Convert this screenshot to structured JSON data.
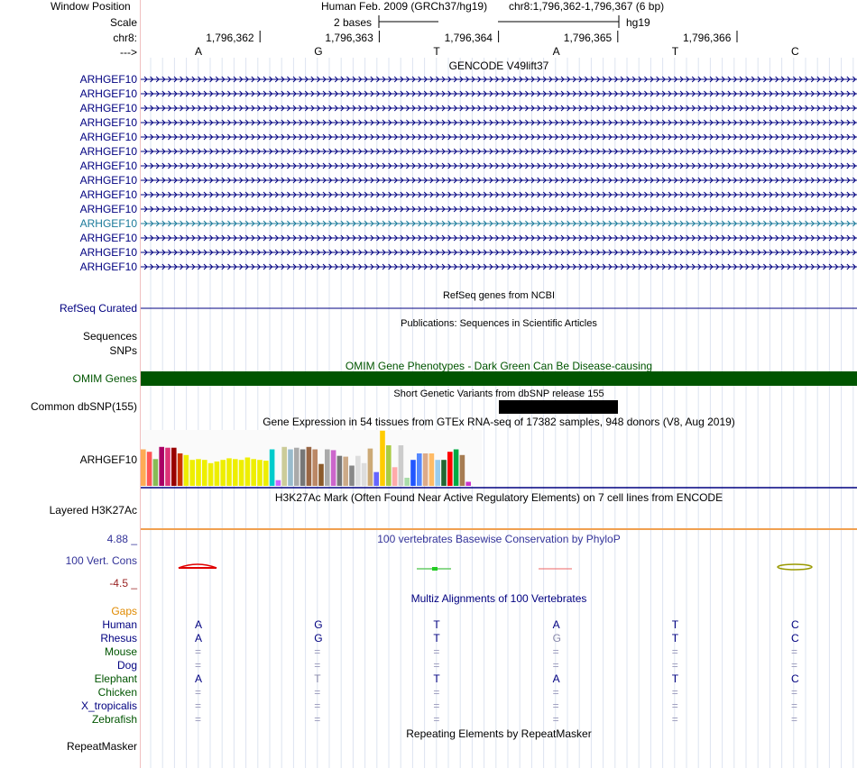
{
  "header": {
    "window_position_label": "Window Position",
    "assembly": "Human Feb. 2009 (GRCh37/hg19)",
    "position": "chr8:1,796,362-1,796,367 (6 bp)",
    "scale_label": "Scale",
    "scale_text": "2 bases",
    "scale_db": "hg19",
    "chrom_label": "chr8:",
    "strand_label": "--->",
    "coords": [
      "1,796,362",
      "1,796,363",
      "1,796,364",
      "1,796,365",
      "1,796,366"
    ],
    "bases": [
      "A",
      "G",
      "T",
      "A",
      "T",
      "C"
    ]
  },
  "gencode": {
    "title": "GENCODE V49lift37",
    "gene_labels": [
      "ARHGEF10",
      "ARHGEF10",
      "ARHGEF10",
      "ARHGEF10",
      "ARHGEF10",
      "ARHGEF10",
      "ARHGEF10",
      "ARHGEF10",
      "ARHGEF10",
      "ARHGEF10",
      "ARHGEF10",
      "ARHGEF10",
      "ARHGEF10",
      "ARHGEF10"
    ],
    "highlight_index": 10,
    "color": "#000080",
    "highlight_color": "#1a7a9a"
  },
  "refseq": {
    "title": "RefSeq genes from NCBI",
    "label": "RefSeq Curated"
  },
  "publications": {
    "title": "Publications: Sequences in Scientific Articles",
    "label_sequences": "Sequences",
    "label_snps": "SNPs"
  },
  "omim": {
    "title": "OMIM Gene Phenotypes - Dark Green Can Be Disease-causing",
    "label": "OMIM Genes",
    "color": "#005500"
  },
  "dbsnp": {
    "title": "Short Genetic Variants from dbSNP release 155",
    "label": "Common dbSNP(155)"
  },
  "gtex": {
    "title": "Gene Expression in 54 tissues from GTEx RNA-seq of 17382 samples, 948 donors (V8, Aug 2019)",
    "label": "ARHGEF10",
    "values": [
      0.45,
      0.42,
      0.33,
      0.48,
      0.47,
      0.47,
      0.4,
      0.38,
      0.32,
      0.33,
      0.32,
      0.28,
      0.3,
      0.32,
      0.34,
      0.33,
      0.32,
      0.35,
      0.33,
      0.32,
      0.31,
      0.45,
      0.07,
      0.48,
      0.45,
      0.47,
      0.45,
      0.48,
      0.45,
      0.27,
      0.45,
      0.44,
      0.37,
      0.36,
      0.25,
      0.37,
      0.28,
      0.46,
      0.17,
      0.68,
      0.5,
      0.23,
      0.5,
      0.1,
      0.32,
      0.4,
      0.4,
      0.4,
      0.32,
      0.32,
      0.42,
      0.45,
      0.38,
      0.05
    ],
    "colors": [
      "#ffaa55",
      "#ff5555",
      "#88bb55",
      "#aa0066",
      "#dd3377",
      "#990000",
      "#cc3300",
      "#eeee00",
      "#eeee00",
      "#eeee00",
      "#eeee00",
      "#eeee00",
      "#eeee00",
      "#eeee00",
      "#eeee00",
      "#eeee00",
      "#eeee00",
      "#eeee00",
      "#eeee00",
      "#eeee00",
      "#eeee00",
      "#00cccc",
      "#cc66ff",
      "#cccc99",
      "#99bbcc",
      "#aaaaaa",
      "#777777",
      "#996644",
      "#bb8866",
      "#8B5A2B",
      "#aaaaaa",
      "#cc66cc",
      "#777777",
      "#ccaa88",
      "#888888",
      "#dddddd",
      "#dddddd",
      "#ccaa77",
      "#6666ff",
      "#ffcc00",
      "#aacc44",
      "#ffaaaa",
      "#cccccc",
      "#aaddaa",
      "#2255ff",
      "#5588ff",
      "#ddaa88",
      "#ffbb66",
      "#99ccee",
      "#226633",
      "#ff0000",
      "#00aa44",
      "#a67c52",
      "#cc33cc"
    ]
  },
  "h3k27ac": {
    "title": "H3K27Ac Mark (Often Found Near Active Regulatory Elements) on 7 cell lines from ENCODE",
    "label": "Layered H3K27Ac"
  },
  "phylop": {
    "title": "100 vertebrates Basewise Conservation by PhyloP",
    "label": "100 Vert. Cons",
    "max_label": "4.88 _",
    "min_label": "-4.5 _",
    "values": [
      1.2,
      0.6,
      0.3,
      -0.1,
      0.0,
      0.9
    ]
  },
  "multiz": {
    "title": "Multiz Alignments of 100 Vertebrates",
    "gaps_label": "Gaps",
    "species": [
      {
        "name": "Human",
        "color": "#000080",
        "bases": [
          "A",
          "G",
          "T",
          "A",
          "T",
          "C"
        ]
      },
      {
        "name": "Rhesus",
        "color": "#000080",
        "bases": [
          "A",
          "G",
          "T",
          "G",
          "T",
          "C"
        ]
      },
      {
        "name": "Mouse",
        "color": "#005500",
        "bases": [
          "=",
          "=",
          "=",
          "=",
          "=",
          "="
        ]
      },
      {
        "name": "Dog",
        "color": "#000080",
        "bases": [
          "=",
          "=",
          "=",
          "=",
          "=",
          "="
        ]
      },
      {
        "name": "Elephant",
        "color": "#005500",
        "bases": [
          "A",
          "T",
          "T",
          "A",
          "T",
          "C"
        ]
      },
      {
        "name": "Chicken",
        "color": "#005500",
        "bases": [
          "=",
          "=",
          "=",
          "=",
          "=",
          "="
        ]
      },
      {
        "name": "X_tropicalis",
        "color": "#000080",
        "bases": [
          "=",
          "=",
          "=",
          "=",
          "=",
          "="
        ]
      },
      {
        "name": "Zebrafish",
        "color": "#005500",
        "bases": [
          "=",
          "=",
          "=",
          "=",
          "=",
          "="
        ]
      }
    ]
  },
  "repeatmasker": {
    "title": "Repeating Elements by RepeatMasker",
    "label": "RepeatMasker"
  }
}
